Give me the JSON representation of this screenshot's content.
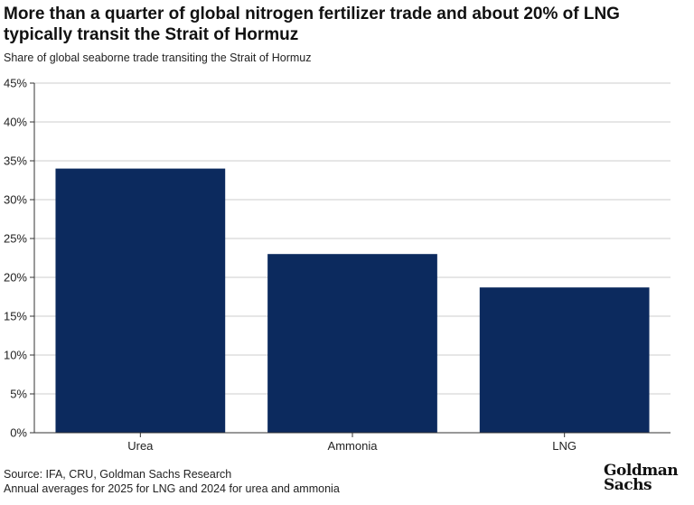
{
  "title": "More than a quarter of global nitrogen fertilizer trade and about 20% of LNG typically transit the Strait of Hormuz",
  "subtitle": "Share of global seaborne trade transiting the Strait of Hormuz",
  "source": "Source: IFA, CRU, Goldman Sachs Research",
  "note": "Annual averages for 2025 for LNG and 2024 for urea and ammonia",
  "logo": {
    "line1": "Goldman",
    "line2": "Sachs"
  },
  "colors": {
    "bar": "#0c2a5e",
    "grid": "#cccccc",
    "axis": "#333333"
  },
  "chart_data": {
    "type": "bar",
    "categories": [
      "Urea",
      "Ammonia",
      "LNG"
    ],
    "values": [
      34,
      23,
      18.7
    ],
    "ylim": [
      0,
      45
    ],
    "yticks": [
      "0%",
      "5%",
      "10%",
      "15%",
      "20%",
      "25%",
      "30%",
      "35%",
      "40%",
      "45%"
    ],
    "ytick_values": [
      0,
      5,
      10,
      15,
      20,
      25,
      30,
      35,
      40,
      45
    ],
    "grid": true
  }
}
